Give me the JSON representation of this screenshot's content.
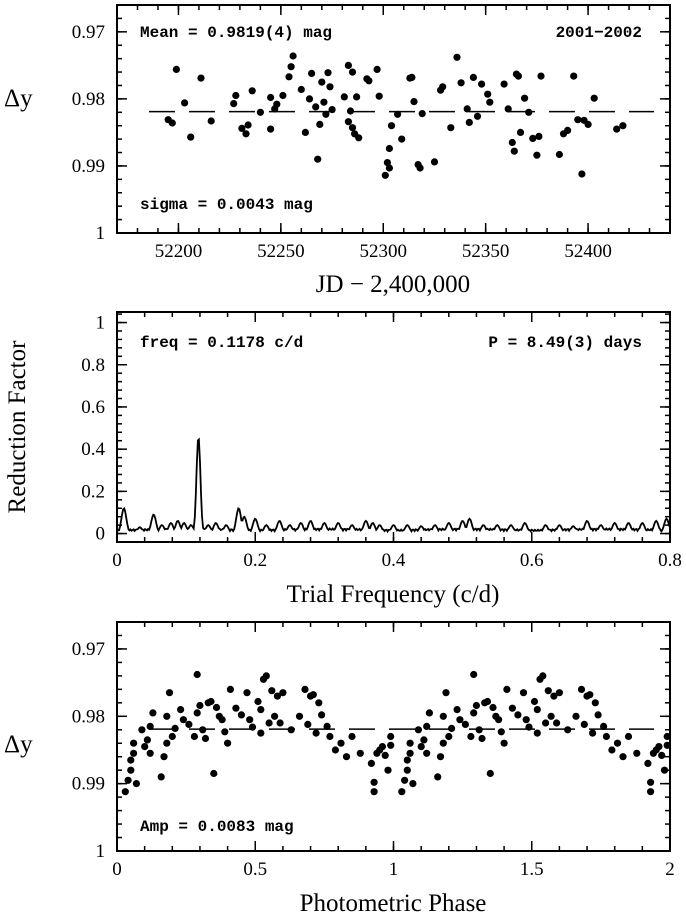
{
  "chart_data": [
    {
      "type": "scatter",
      "panel": "light-curve",
      "xlabel": "JD − 2,400,000",
      "ylabel": "Δy",
      "xlim": [
        52170,
        52440
      ],
      "ylim": [
        1.0,
        0.966
      ],
      "y_inverted": true,
      "xticks": [
        52200,
        52250,
        52300,
        52350,
        52400
      ],
      "xtick_labels": [
        "52200",
        "52250",
        "52300",
        "52350",
        "52400"
      ],
      "yticks": [
        0.97,
        0.98,
        0.99,
        1.0
      ],
      "ytick_labels": [
        "0.97",
        "0.98",
        "0.99",
        "1"
      ],
      "mean_line": 0.9819,
      "annotations": {
        "mean": "Mean = 0.9819(4) mag",
        "season": "2001−2002",
        "sigma": "sigma = 0.0043 mag"
      },
      "points": [
        [
          52195,
          0.9831
        ],
        [
          52197,
          0.9836
        ],
        [
          52199,
          0.9756
        ],
        [
          52203,
          0.9806
        ],
        [
          52206,
          0.9857
        ],
        [
          52211,
          0.9769
        ],
        [
          52216,
          0.9833
        ],
        [
          52227,
          0.9807
        ],
        [
          52228,
          0.9795
        ],
        [
          52231,
          0.9844
        ],
        [
          52233,
          0.9852
        ],
        [
          52234,
          0.9839
        ],
        [
          52236,
          0.9788
        ],
        [
          52240,
          0.982
        ],
        [
          52245,
          0.9845
        ],
        [
          52245,
          0.9798
        ],
        [
          52247,
          0.9815
        ],
        [
          52248,
          0.9808
        ],
        [
          52251,
          0.9795
        ],
        [
          52254,
          0.9767
        ],
        [
          52255,
          0.9752
        ],
        [
          52256,
          0.9736
        ],
        [
          52260,
          0.9786
        ],
        [
          52262,
          0.985
        ],
        [
          52264,
          0.98
        ],
        [
          52265,
          0.9762
        ],
        [
          52267,
          0.9812
        ],
        [
          52268,
          0.989
        ],
        [
          52269,
          0.9838
        ],
        [
          52270,
          0.9775
        ],
        [
          52271,
          0.9805
        ],
        [
          52272,
          0.9823
        ],
        [
          52273,
          0.9761
        ],
        [
          52274,
          0.9782
        ],
        [
          52275,
          0.9816
        ],
        [
          52281,
          0.9797
        ],
        [
          52283,
          0.975
        ],
        [
          52283,
          0.9834
        ],
        [
          52284,
          0.9818
        ],
        [
          52285,
          0.9843
        ],
        [
          52285,
          0.976
        ],
        [
          52286,
          0.9852
        ],
        [
          52287,
          0.9797
        ],
        [
          52288,
          0.9858
        ],
        [
          52292,
          0.977
        ],
        [
          52293,
          0.9773
        ],
        [
          52297,
          0.9756
        ],
        [
          52298,
          0.9796
        ],
        [
          52301,
          0.9914
        ],
        [
          52302,
          0.9895
        ],
        [
          52303,
          0.9903
        ],
        [
          52303,
          0.9874
        ],
        [
          52304,
          0.984
        ],
        [
          52307,
          0.9823
        ],
        [
          52309,
          0.986
        ],
        [
          52313,
          0.9769
        ],
        [
          52314,
          0.9768
        ],
        [
          52315,
          0.9804
        ],
        [
          52317,
          0.9898
        ],
        [
          52318,
          0.9903
        ],
        [
          52319,
          0.9822
        ],
        [
          52325,
          0.9894
        ],
        [
          52328,
          0.9787
        ],
        [
          52329,
          0.9782
        ],
        [
          52333,
          0.9843
        ],
        [
          52336,
          0.9738
        ],
        [
          52338,
          0.9776
        ],
        [
          52341,
          0.9815
        ],
        [
          52342,
          0.9835
        ],
        [
          52344,
          0.9768
        ],
        [
          52346,
          0.9826
        ],
        [
          52348,
          0.9778
        ],
        [
          52351,
          0.9793
        ],
        [
          52352,
          0.9805
        ],
        [
          52359,
          0.9778
        ],
        [
          52361,
          0.9815
        ],
        [
          52363,
          0.9865
        ],
        [
          52364,
          0.9878
        ],
        [
          52365,
          0.9763
        ],
        [
          52366,
          0.9766
        ],
        [
          52367,
          0.985
        ],
        [
          52369,
          0.9799
        ],
        [
          52371,
          0.982
        ],
        [
          52373,
          0.9859
        ],
        [
          52375,
          0.9884
        ],
        [
          52376,
          0.9856
        ],
        [
          52377,
          0.9766
        ],
        [
          52386,
          0.9883
        ],
        [
          52388,
          0.9852
        ],
        [
          52390,
          0.9847
        ],
        [
          52393,
          0.9766
        ],
        [
          52395,
          0.9831
        ],
        [
          52397,
          0.9912
        ],
        [
          52398,
          0.9832
        ],
        [
          52400,
          0.9838
        ],
        [
          52403,
          0.9799
        ],
        [
          52414,
          0.9845
        ],
        [
          52417,
          0.984
        ]
      ]
    },
    {
      "type": "line",
      "panel": "periodogram",
      "xlabel": "Trial Frequency (c/d)",
      "ylabel": "Reduction Factor",
      "xlim": [
        0,
        0.8
      ],
      "ylim": [
        -0.04,
        1.05
      ],
      "xticks": [
        0,
        0.2,
        0.4,
        0.6,
        0.8
      ],
      "xtick_labels": [
        "0",
        "0.2",
        "0.4",
        "0.6",
        "0.8"
      ],
      "yticks": [
        0,
        0.2,
        0.4,
        0.6,
        0.8,
        1.0
      ],
      "ytick_labels": [
        "0",
        "0.2",
        "0.4",
        "0.6",
        "0.8",
        "1"
      ],
      "baseline": 0.008,
      "annotations": {
        "freq": "freq = 0.1178 c/d",
        "period": "P = 8.49(3) days"
      },
      "peaks": [
        [
          0.01,
          0.12
        ],
        [
          0.033,
          0.03
        ],
        [
          0.053,
          0.09
        ],
        [
          0.065,
          0.04
        ],
        [
          0.078,
          0.05
        ],
        [
          0.088,
          0.06
        ],
        [
          0.097,
          0.05
        ],
        [
          0.107,
          0.04
        ],
        [
          0.1178,
          0.46
        ],
        [
          0.132,
          0.04
        ],
        [
          0.143,
          0.05
        ],
        [
          0.158,
          0.04
        ],
        [
          0.176,
          0.12
        ],
        [
          0.184,
          0.08
        ],
        [
          0.2,
          0.07
        ],
        [
          0.216,
          0.04
        ],
        [
          0.235,
          0.06
        ],
        [
          0.25,
          0.04
        ],
        [
          0.266,
          0.05
        ],
        [
          0.28,
          0.06
        ],
        [
          0.3,
          0.05
        ],
        [
          0.32,
          0.05
        ],
        [
          0.34,
          0.04
        ],
        [
          0.36,
          0.06
        ],
        [
          0.37,
          0.05
        ],
        [
          0.38,
          0.04
        ],
        [
          0.4,
          0.04
        ],
        [
          0.42,
          0.04
        ],
        [
          0.44,
          0.035
        ],
        [
          0.46,
          0.04
        ],
        [
          0.48,
          0.05
        ],
        [
          0.5,
          0.06
        ],
        [
          0.51,
          0.07
        ],
        [
          0.53,
          0.04
        ],
        [
          0.55,
          0.04
        ],
        [
          0.57,
          0.04
        ],
        [
          0.59,
          0.05
        ],
        [
          0.62,
          0.04
        ],
        [
          0.64,
          0.04
        ],
        [
          0.66,
          0.035
        ],
        [
          0.68,
          0.06
        ],
        [
          0.7,
          0.04
        ],
        [
          0.72,
          0.05
        ],
        [
          0.74,
          0.05
        ],
        [
          0.76,
          0.05
        ],
        [
          0.78,
          0.06
        ],
        [
          0.795,
          0.07
        ]
      ]
    },
    {
      "type": "scatter",
      "panel": "phased",
      "xlabel": "Photometric Phase",
      "ylabel": "Δy",
      "xlim": [
        0,
        2
      ],
      "ylim": [
        1.0,
        0.966
      ],
      "y_inverted": true,
      "xticks": [
        0,
        0.5,
        1,
        1.5,
        2
      ],
      "xtick_labels": [
        "0",
        "0.5",
        "1",
        "1.5",
        "2"
      ],
      "yticks": [
        0.97,
        0.98,
        0.99,
        1.0
      ],
      "ytick_labels": [
        "0.97",
        "0.98",
        "0.99",
        "1"
      ],
      "mean_line": 0.9819,
      "annotations": {
        "amp": "Amp = 0.0083 mag"
      },
      "points": [
        [
          0.03,
          0.9912
        ],
        [
          0.04,
          0.9895
        ],
        [
          0.05,
          0.988
        ],
        [
          0.05,
          0.9865
        ],
        [
          0.06,
          0.9855
        ],
        [
          0.06,
          0.984
        ],
        [
          0.07,
          0.99
        ],
        [
          0.09,
          0.982
        ],
        [
          0.1,
          0.9845
        ],
        [
          0.11,
          0.9835
        ],
        [
          0.12,
          0.9855
        ],
        [
          0.12,
          0.9815
        ],
        [
          0.13,
          0.9795
        ],
        [
          0.16,
          0.989
        ],
        [
          0.17,
          0.986
        ],
        [
          0.18,
          0.984
        ],
        [
          0.18,
          0.98
        ],
        [
          0.19,
          0.9765
        ],
        [
          0.2,
          0.983
        ],
        [
          0.21,
          0.9818
        ],
        [
          0.23,
          0.979
        ],
        [
          0.24,
          0.9805
        ],
        [
          0.26,
          0.9812
        ],
        [
          0.28,
          0.983
        ],
        [
          0.29,
          0.9795
        ],
        [
          0.29,
          0.9738
        ],
        [
          0.3,
          0.9784
        ],
        [
          0.31,
          0.982
        ],
        [
          0.32,
          0.9833
        ],
        [
          0.33,
          0.978
        ],
        [
          0.34,
          0.9778
        ],
        [
          0.35,
          0.9885
        ],
        [
          0.36,
          0.9787
        ],
        [
          0.37,
          0.98
        ],
        [
          0.38,
          0.9805
        ],
        [
          0.39,
          0.9823
        ],
        [
          0.4,
          0.984
        ],
        [
          0.41,
          0.976
        ],
        [
          0.43,
          0.9788
        ],
        [
          0.45,
          0.9798
        ],
        [
          0.47,
          0.9765
        ],
        [
          0.48,
          0.9805
        ],
        [
          0.49,
          0.9816
        ],
        [
          0.51,
          0.9778
        ],
        [
          0.52,
          0.979
        ],
        [
          0.52,
          0.9825
        ],
        [
          0.53,
          0.9745
        ],
        [
          0.54,
          0.974
        ],
        [
          0.55,
          0.981
        ],
        [
          0.56,
          0.9762
        ],
        [
          0.57,
          0.98
        ],
        [
          0.58,
          0.977
        ],
        [
          0.59,
          0.981
        ],
        [
          0.6,
          0.9765
        ],
        [
          0.63,
          0.982
        ],
        [
          0.66,
          0.98
        ],
        [
          0.68,
          0.976
        ],
        [
          0.69,
          0.9812
        ],
        [
          0.7,
          0.977
        ],
        [
          0.71,
          0.9768
        ],
        [
          0.72,
          0.9825
        ],
        [
          0.73,
          0.978
        ],
        [
          0.74,
          0.9798
        ],
        [
          0.76,
          0.9815
        ],
        [
          0.77,
          0.983
        ],
        [
          0.79,
          0.985
        ],
        [
          0.81,
          0.984
        ],
        [
          0.83,
          0.986
        ],
        [
          0.85,
          0.983
        ],
        [
          0.88,
          0.9855
        ],
        [
          0.92,
          0.987
        ],
        [
          0.93,
          0.9912
        ],
        [
          0.93,
          0.9898
        ],
        [
          0.94,
          0.9855
        ],
        [
          0.95,
          0.985
        ],
        [
          0.96,
          0.9845
        ],
        [
          0.97,
          0.9858
        ],
        [
          0.98,
          0.988
        ],
        [
          0.99,
          0.9843
        ],
        [
          0.99,
          0.983
        ]
      ]
    }
  ]
}
